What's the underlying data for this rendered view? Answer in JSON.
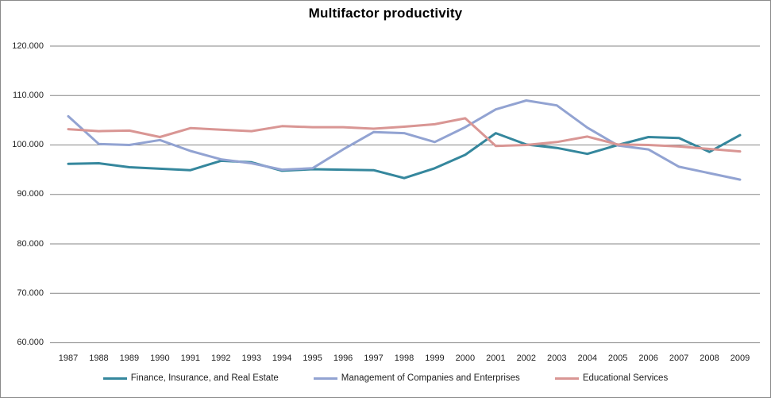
{
  "chart": {
    "title": "Multifactor productivity"
  },
  "chart_data": {
    "type": "line",
    "title": "Multifactor productivity",
    "xlabel": "",
    "ylabel": "",
    "x": [
      "1987",
      "1988",
      "1989",
      "1990",
      "1991",
      "1992",
      "1993",
      "1994",
      "1995",
      "1996",
      "1997",
      "1998",
      "1999",
      "2000",
      "2001",
      "2002",
      "2003",
      "2004",
      "2005",
      "2006",
      "2007",
      "2008",
      "2009"
    ],
    "series": [
      {
        "name": "Finance, Insurance, and Real Estate",
        "color": "#35879d",
        "values": [
          96.2,
          96.3,
          95.5,
          95.2,
          94.9,
          96.8,
          96.5,
          94.8,
          95.1,
          95.0,
          94.9,
          93.3,
          95.3,
          98.0,
          102.4,
          100.1,
          99.4,
          98.2,
          100.0,
          101.6,
          101.4,
          98.6,
          102.0
        ]
      },
      {
        "name": "Management of Companies and Enterprises",
        "color": "#92a3d2",
        "values": [
          105.8,
          100.2,
          100.0,
          101.0,
          98.8,
          97.1,
          96.3,
          95.0,
          95.3,
          99.1,
          102.6,
          102.4,
          100.6,
          103.6,
          107.2,
          109.0,
          108.0,
          103.5,
          99.9,
          99.1,
          95.6,
          94.3,
          93.0
        ]
      },
      {
        "name": "Educational Services",
        "color": "#d99694",
        "values": [
          103.2,
          102.8,
          102.9,
          101.6,
          103.4,
          103.1,
          102.8,
          103.8,
          103.6,
          103.6,
          103.3,
          103.7,
          104.2,
          105.4,
          99.8,
          100.0,
          100.6,
          101.7,
          100.1,
          100.0,
          99.7,
          99.2,
          98.7
        ]
      }
    ],
    "ylim": [
      60,
      120
    ],
    "y_ticks": [
      120,
      110,
      100,
      90,
      80,
      70,
      60
    ],
    "y_tick_labels": [
      "120.000",
      "110.000",
      "100.000",
      "90.000",
      "80.000",
      "70.000",
      "60.000"
    ],
    "grid": true,
    "gridline_color": "#868686",
    "legend_position": "bottom"
  }
}
